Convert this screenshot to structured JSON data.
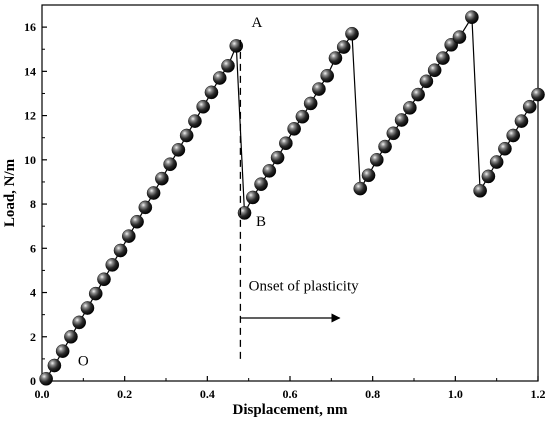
{
  "chart_data": {
    "type": "scatter",
    "xlabel": "Displacement, nm",
    "ylabel": "Load, N/m",
    "xlim": [
      0,
      1.2
    ],
    "ylim": [
      0,
      17
    ],
    "x_ticks": [
      "0.0",
      "0.2",
      "0.4",
      "0.6",
      "0.8",
      "1.0",
      "1.2"
    ],
    "y_ticks": [
      "0",
      "2",
      "4",
      "6",
      "8",
      "10",
      "12",
      "14",
      "16"
    ],
    "series": [
      {
        "marker": "sphere",
        "connected_by_line": true,
        "points": [
          [
            0.01,
            0.1
          ],
          [
            0.03,
            0.7
          ],
          [
            0.05,
            1.35
          ],
          [
            0.07,
            2.0
          ],
          [
            0.09,
            2.65
          ],
          [
            0.11,
            3.3
          ],
          [
            0.13,
            3.95
          ],
          [
            0.15,
            4.6
          ],
          [
            0.17,
            5.25
          ],
          [
            0.19,
            5.9
          ],
          [
            0.21,
            6.55
          ],
          [
            0.23,
            7.2
          ],
          [
            0.25,
            7.85
          ],
          [
            0.27,
            8.5
          ],
          [
            0.29,
            9.15
          ],
          [
            0.31,
            9.8
          ],
          [
            0.33,
            10.45
          ],
          [
            0.35,
            11.1
          ],
          [
            0.37,
            11.75
          ],
          [
            0.39,
            12.4
          ],
          [
            0.41,
            13.05
          ],
          [
            0.43,
            13.7
          ],
          [
            0.45,
            14.25
          ],
          [
            0.47,
            15.15
          ],
          [
            0.49,
            7.6
          ],
          [
            0.51,
            8.3
          ],
          [
            0.53,
            8.9
          ],
          [
            0.55,
            9.5
          ],
          [
            0.57,
            10.1
          ],
          [
            0.59,
            10.75
          ],
          [
            0.61,
            11.4
          ],
          [
            0.63,
            11.95
          ],
          [
            0.65,
            12.55
          ],
          [
            0.67,
            13.2
          ],
          [
            0.69,
            13.8
          ],
          [
            0.71,
            14.6
          ],
          [
            0.73,
            15.1
          ],
          [
            0.75,
            15.7
          ],
          [
            0.77,
            8.7
          ],
          [
            0.79,
            9.3
          ],
          [
            0.81,
            10.0
          ],
          [
            0.83,
            10.6
          ],
          [
            0.85,
            11.2
          ],
          [
            0.87,
            11.8
          ],
          [
            0.89,
            12.35
          ],
          [
            0.91,
            12.95
          ],
          [
            0.93,
            13.55
          ],
          [
            0.95,
            14.05
          ],
          [
            0.97,
            14.6
          ],
          [
            0.99,
            15.2
          ],
          [
            1.01,
            15.55
          ],
          [
            1.04,
            16.45
          ],
          [
            1.06,
            8.6
          ],
          [
            1.08,
            9.25
          ],
          [
            1.1,
            9.9
          ],
          [
            1.12,
            10.5
          ],
          [
            1.14,
            11.1
          ],
          [
            1.16,
            11.75
          ],
          [
            1.18,
            12.4
          ],
          [
            1.2,
            12.95
          ]
        ]
      }
    ],
    "annotations": {
      "origin": {
        "label": "O",
        "x": 0.1,
        "y": 0.7
      },
      "point_a": {
        "label": "A",
        "x": 0.52,
        "y": 16.0
      },
      "point_b": {
        "label": "B",
        "x": 0.53,
        "y": 7.0
      },
      "onset": {
        "label": "Onset of plasticity",
        "line_x": 0.48,
        "line_y_from": 1.0,
        "line_y_to": 15.5,
        "text_x": 0.5,
        "text_y": 4.1,
        "arrow_y": 2.85,
        "arrow_to_x": 0.72
      }
    },
    "grid": false,
    "legend": "none"
  }
}
